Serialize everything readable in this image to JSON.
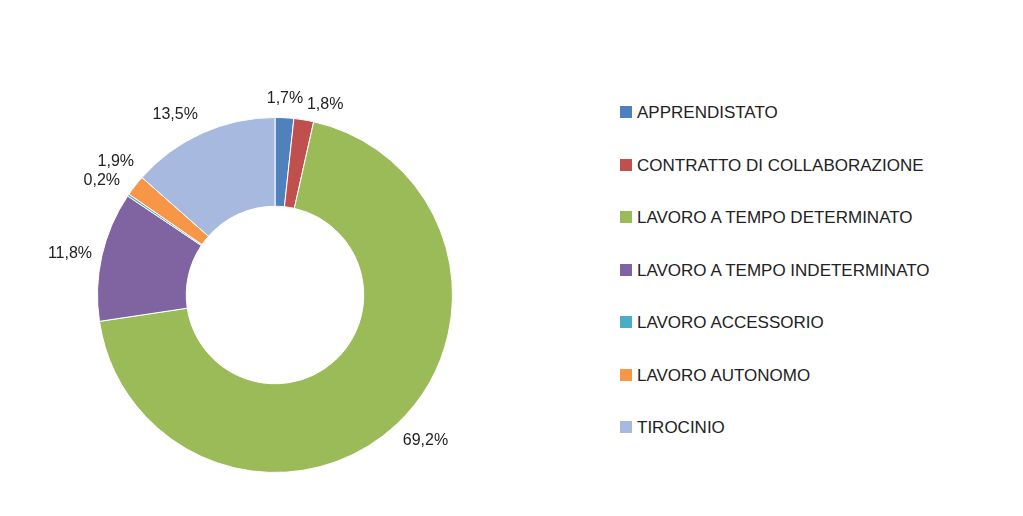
{
  "chart_data": {
    "type": "doughnut",
    "categories": [
      "APPRENDISTATO",
      "CONTRATTO DI COLLABORAZIONE",
      "LAVORO A TEMPO DETERMINATO",
      "LAVORO A TEMPO INDETERMINATO",
      "LAVORO ACCESSORIO",
      "LAVORO AUTONOMO",
      "TIROCINIO"
    ],
    "values": [
      1.7,
      1.8,
      69.2,
      11.8,
      0.2,
      1.9,
      13.5
    ],
    "value_labels": [
      "1,7%",
      "1,8%",
      "69,2%",
      "11,8%",
      "0,2%",
      "1,9%",
      "13,5%"
    ],
    "colors": [
      "#4f81bd",
      "#c0504d",
      "#9bbb59",
      "#8064a2",
      "#4bacc6",
      "#f79646",
      "#a7b9df"
    ],
    "legend": "right",
    "data_labels": true
  }
}
